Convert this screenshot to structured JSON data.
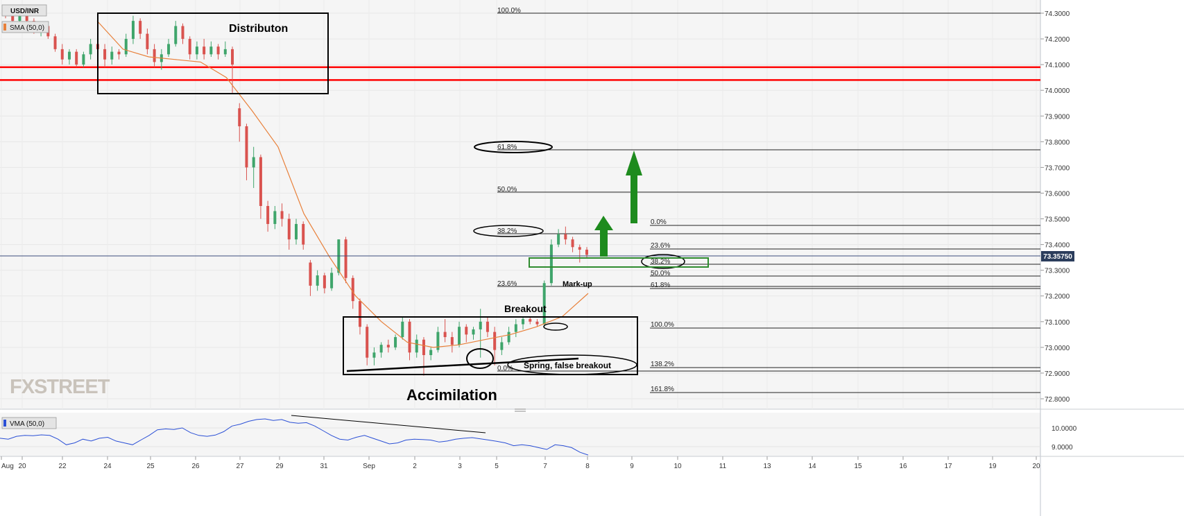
{
  "header": {
    "symbol": "USD/INR",
    "sma_label": "SMA (50,0)",
    "sma_color": "#e8803a"
  },
  "watermark": "FXSTREET",
  "colors": {
    "up": "#3fa56b",
    "down": "#d9534f",
    "resistance": "#ff0000",
    "support_box": "#2e8b2e",
    "arrow": "#1e8b1e",
    "vma": "#2a4fd6",
    "price_tag_bg": "#2b3d5c"
  },
  "annotations": {
    "distribution": "Distributon",
    "accumulation": "Accimilation",
    "breakout": "Breakout",
    "markup": "Mark-up",
    "spring": "Spring, false breakout"
  },
  "fib_major": [
    "100.0%",
    "61.8%",
    "50.0%",
    "38.2%",
    "23.6%",
    "0.0%"
  ],
  "fib_minor": [
    "0.0%",
    "23.6%",
    "38.2%",
    "50.0%",
    "61.8%",
    "100.0%",
    "138.2%",
    "161.8%"
  ],
  "vma_panel": {
    "label": "VMA (50,0)",
    "ticks": [
      "10.0000",
      "9.0000"
    ]
  },
  "chart_data": {
    "type": "candlestick",
    "y_ticks": [
      "74.3000",
      "74.2000",
      "74.1000",
      "74.0000",
      "73.9000",
      "73.8000",
      "73.7000",
      "73.6000",
      "73.5000",
      "73.4000",
      "73.3000",
      "73.2000",
      "73.1000",
      "73.0000",
      "72.9000",
      "72.8000"
    ],
    "ylim": [
      72.77,
      74.32
    ],
    "x_ticks": [
      "Aug",
      "20",
      "22",
      "24",
      "25",
      "26",
      "27",
      "29",
      "31",
      "Sep",
      "2",
      "3",
      "5",
      "7",
      "8",
      "9",
      "10",
      "11",
      "13",
      "14",
      "15",
      "16",
      "17",
      "19",
      "20"
    ],
    "last_price": "73.35750",
    "resistance_levels": [
      74.09,
      74.04
    ],
    "sma_series": [
      74.27,
      74.16,
      74.13,
      74.12,
      74.11,
      74.05,
      73.92,
      73.78,
      73.52,
      73.35,
      73.2,
      73.1,
      73.02,
      73.0,
      73.01,
      73.03,
      73.05,
      73.08,
      73.12,
      73.21
    ],
    "candles": [
      [
        74.31,
        74.32,
        74.28,
        74.3
      ],
      [
        74.3,
        74.31,
        74.26,
        74.27
      ],
      [
        74.27,
        74.3,
        74.25,
        74.29
      ],
      [
        74.29,
        74.3,
        74.26,
        74.27
      ],
      [
        74.27,
        74.28,
        74.22,
        74.23
      ],
      [
        74.23,
        74.26,
        74.21,
        74.25
      ],
      [
        74.25,
        74.26,
        74.2,
        74.21
      ],
      [
        74.21,
        74.22,
        74.15,
        74.16
      ],
      [
        74.16,
        74.18,
        74.1,
        74.12
      ],
      [
        74.12,
        74.16,
        74.1,
        74.15
      ],
      [
        74.15,
        74.16,
        74.09,
        74.1
      ],
      [
        74.1,
        74.15,
        74.09,
        74.14
      ],
      [
        74.14,
        74.2,
        74.12,
        74.18
      ],
      [
        74.18,
        74.21,
        74.14,
        74.16
      ],
      [
        74.16,
        74.18,
        74.09,
        74.12
      ],
      [
        74.12,
        74.17,
        74.1,
        74.15
      ],
      [
        74.15,
        74.16,
        74.12,
        74.14
      ],
      [
        74.14,
        74.22,
        74.13,
        74.2
      ],
      [
        74.2,
        74.29,
        74.18,
        74.27
      ],
      [
        74.27,
        74.28,
        74.2,
        74.22
      ],
      [
        74.22,
        74.24,
        74.14,
        74.16
      ],
      [
        74.16,
        74.18,
        74.09,
        74.11
      ],
      [
        74.11,
        74.16,
        74.08,
        74.14
      ],
      [
        74.14,
        74.2,
        74.13,
        74.18
      ],
      [
        74.18,
        74.27,
        74.17,
        74.25
      ],
      [
        74.25,
        74.26,
        74.18,
        74.2
      ],
      [
        74.2,
        74.21,
        74.12,
        74.14
      ],
      [
        74.14,
        74.19,
        74.12,
        74.17
      ],
      [
        74.17,
        74.2,
        74.12,
        74.14
      ],
      [
        74.14,
        74.19,
        74.13,
        74.17
      ],
      [
        74.17,
        74.18,
        74.12,
        74.14
      ],
      [
        74.14,
        74.19,
        74.13,
        74.16
      ],
      [
        74.16,
        74.17,
        73.99,
        74.1
      ],
      [
        73.93,
        73.95,
        73.8,
        73.86
      ],
      [
        73.86,
        73.87,
        73.65,
        73.7
      ],
      [
        73.7,
        73.78,
        73.62,
        73.74
      ],
      [
        73.74,
        73.75,
        73.5,
        73.55
      ],
      [
        73.55,
        73.57,
        73.45,
        73.48
      ],
      [
        73.48,
        73.55,
        73.46,
        73.53
      ],
      [
        73.53,
        73.56,
        73.47,
        73.5
      ],
      [
        73.5,
        73.52,
        73.38,
        73.42
      ],
      [
        73.42,
        73.5,
        73.4,
        73.48
      ],
      [
        73.48,
        73.49,
        73.38,
        73.4
      ],
      [
        73.33,
        73.34,
        73.2,
        73.24
      ],
      [
        73.24,
        73.3,
        73.22,
        73.28
      ],
      [
        73.28,
        73.29,
        73.21,
        73.23
      ],
      [
        73.23,
        73.31,
        73.22,
        73.29
      ],
      [
        73.29,
        73.42,
        73.28,
        73.42
      ],
      [
        73.42,
        73.43,
        73.25,
        73.27
      ],
      [
        73.27,
        73.28,
        73.15,
        73.18
      ],
      [
        73.18,
        73.19,
        73.05,
        73.08
      ],
      [
        73.08,
        73.09,
        72.93,
        72.96
      ],
      [
        72.96,
        73.0,
        72.93,
        72.98
      ],
      [
        72.98,
        73.02,
        72.96,
        73.01
      ],
      [
        73.01,
        73.03,
        72.98,
        73.0
      ],
      [
        73.0,
        73.05,
        72.99,
        73.04
      ],
      [
        73.04,
        73.12,
        73.03,
        73.1
      ],
      [
        73.1,
        73.11,
        72.95,
        72.98
      ],
      [
        72.98,
        73.05,
        72.96,
        73.03
      ],
      [
        73.03,
        73.04,
        72.89,
        72.97
      ],
      [
        72.97,
        73.0,
        72.95,
        72.99
      ],
      [
        72.99,
        73.08,
        72.98,
        73.06
      ],
      [
        73.06,
        73.11,
        73.02,
        73.04
      ],
      [
        73.04,
        73.06,
        72.98,
        73.01
      ],
      [
        73.01,
        73.1,
        73.0,
        73.08
      ],
      [
        73.08,
        73.09,
        73.02,
        73.05
      ],
      [
        73.05,
        73.08,
        73.03,
        73.07
      ],
      [
        73.07,
        73.15,
        72.96,
        73.1
      ],
      [
        73.1,
        73.12,
        73.04,
        73.06
      ],
      [
        73.06,
        73.08,
        72.93,
        72.99
      ],
      [
        72.99,
        73.04,
        72.97,
        73.02
      ],
      [
        73.02,
        73.08,
        73.01,
        73.06
      ],
      [
        73.06,
        73.11,
        73.04,
        73.09
      ],
      [
        73.09,
        73.12,
        73.07,
        73.11
      ],
      [
        73.11,
        73.12,
        73.09,
        73.1
      ],
      [
        73.1,
        73.11,
        73.08,
        73.09
      ],
      [
        73.09,
        73.26,
        73.08,
        73.25
      ],
      [
        73.25,
        73.42,
        73.24,
        73.4
      ],
      [
        73.4,
        73.46,
        73.39,
        73.44
      ],
      [
        73.44,
        73.47,
        73.4,
        73.42
      ],
      [
        73.42,
        73.43,
        73.37,
        73.39
      ],
      [
        73.39,
        73.4,
        73.33,
        73.38
      ],
      [
        73.38,
        73.39,
        73.35,
        73.36
      ]
    ],
    "vma_values": [
      9.45,
      9.4,
      9.55,
      9.6,
      9.58,
      9.63,
      9.6,
      9.4,
      9.1,
      9.2,
      9.4,
      9.3,
      9.45,
      9.5,
      9.3,
      9.2,
      9.1,
      9.35,
      9.6,
      9.9,
      9.95,
      9.92,
      10.0,
      9.75,
      9.6,
      9.55,
      9.62,
      9.8,
      10.1,
      10.2,
      10.35,
      10.45,
      10.48,
      10.4,
      10.45,
      10.3,
      10.25,
      10.28,
      10.1,
      9.85,
      9.6,
      9.4,
      9.35,
      9.5,
      9.6,
      9.45,
      9.3,
      9.15,
      9.2,
      9.35,
      9.4,
      9.38,
      9.35,
      9.25,
      9.3,
      9.4,
      9.45,
      9.48,
      9.42,
      9.35,
      9.28,
      9.2,
      9.05,
      9.1,
      9.05,
      8.95,
      8.85,
      9.1,
      9.05,
      8.95,
      8.7,
      8.55
    ]
  }
}
